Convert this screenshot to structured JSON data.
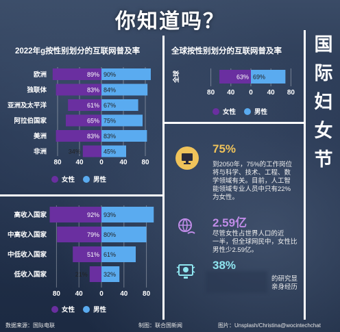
{
  "title": "你知道吗？",
  "side_title": [
    "国",
    "际",
    "妇",
    "女",
    "节"
  ],
  "colors": {
    "female": "#6a2fa0",
    "male": "#5aabf0",
    "accent_gold": "#f0c35a",
    "accent_purple": "#c08ce8",
    "accent_cyan": "#8fe6f0"
  },
  "legend": {
    "female": "女性",
    "male": "男性"
  },
  "chart_data": [
    {
      "type": "bar",
      "title": "2022年g按性别划分的互联网普及率",
      "categories": [
        "欧洲",
        "独联体",
        "亚洲及太平洋",
        "阿拉伯国家",
        "美洲",
        "非洲"
      ],
      "series": [
        {
          "name": "女性",
          "values": [
            89,
            83,
            61,
            65,
            83,
            34
          ],
          "labels": [
            "89%",
            "83%",
            "61%",
            "65%",
            "83%",
            "34%"
          ]
        },
        {
          "name": "男性",
          "values": [
            90,
            84,
            67,
            75,
            83,
            45
          ],
          "labels": [
            "90%",
            "84%",
            "67%",
            "75%",
            "83%",
            "45%"
          ]
        }
      ],
      "xticks": [
        "80",
        "40",
        "0",
        "40",
        "80"
      ],
      "xlim": [
        -100,
        100
      ],
      "legend_position": "bottom-left"
    },
    {
      "type": "bar",
      "title": "全球按性别划分的互联网普及率",
      "categories": [
        "全球"
      ],
      "series": [
        {
          "name": "女性",
          "values": [
            63
          ],
          "labels": [
            "63%"
          ]
        },
        {
          "name": "男性",
          "values": [
            69
          ],
          "labels": [
            "69%"
          ]
        }
      ],
      "xticks": [
        "80",
        "40",
        "0",
        "40",
        "80"
      ],
      "xlim": [
        -100,
        100
      ],
      "legend_position": "bottom"
    },
    {
      "type": "bar",
      "title": "",
      "categories": [
        "高收入国家",
        "中高收入国家",
        "中低收入国家",
        "低收入国家"
      ],
      "series": [
        {
          "name": "女性",
          "values": [
            92,
            79,
            51,
            21
          ],
          "labels": [
            "92%",
            "79%",
            "51%",
            "21%"
          ]
        },
        {
          "name": "男性",
          "values": [
            93,
            80,
            61,
            32
          ],
          "labels": [
            "93%",
            "80%",
            "61%",
            "32%"
          ]
        }
      ],
      "xticks": [
        "80",
        "40",
        "0",
        "40",
        "80"
      ],
      "xlim": [
        -100,
        100
      ],
      "legend_position": "bottom"
    }
  ],
  "stats": [
    {
      "number": "75%",
      "text": [
        "到2050年，75%的工作岗位",
        "将与科学、技术、工程、数",
        "学领域有关。目前，人工智",
        "能领域专业人员中只有22%",
        "为女性。"
      ]
    },
    {
      "number": "2.59亿",
      "text": [
        "尽管女性占世界人口的近",
        "一半，但全球网民中，女性比",
        "男性少2.59亿。"
      ]
    },
    {
      "number": "38%",
      "text": [
        "的研究显",
        "亲身经历"
      ]
    }
  ],
  "footer": {
    "source": "数据来源：国际电联",
    "producer": "制图：联合国新闻",
    "photo": "图片：Unsplash/Christina@wocintechchat"
  }
}
